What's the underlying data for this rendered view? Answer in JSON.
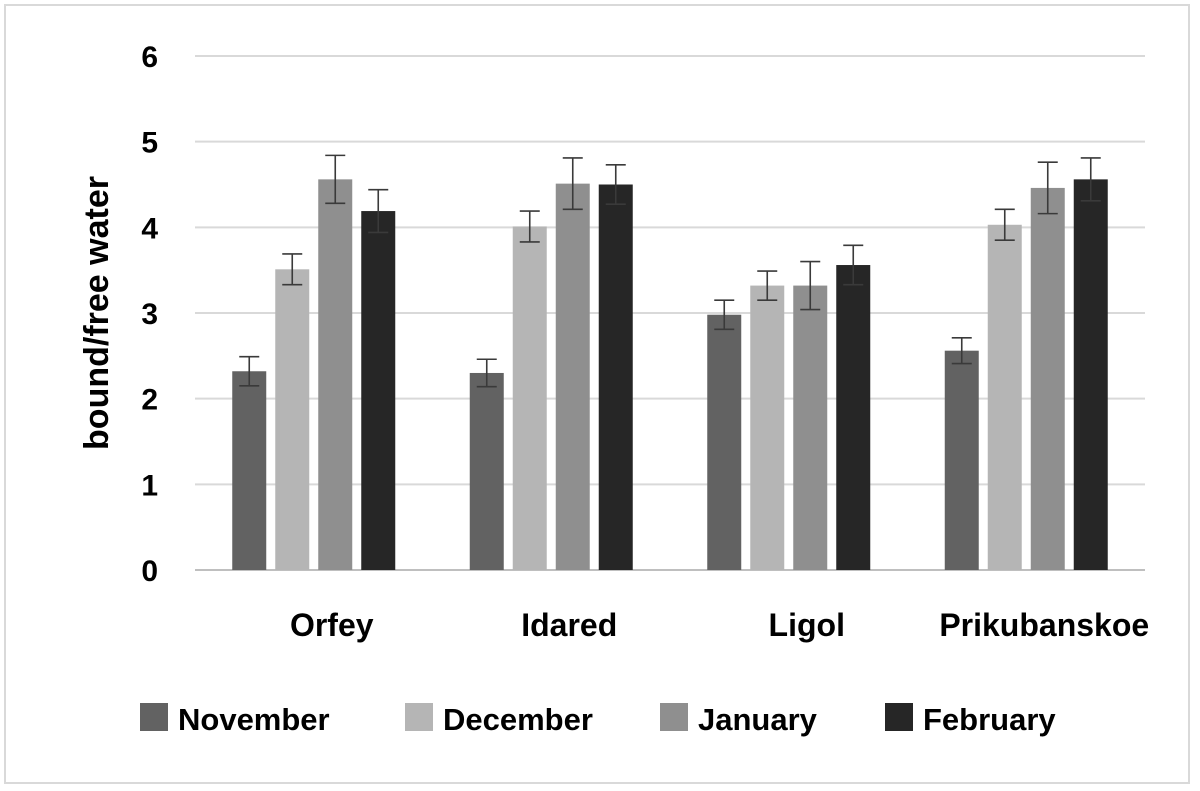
{
  "chart_data": {
    "type": "bar",
    "title": "",
    "xlabel": "",
    "ylabel": "bound/free water",
    "ylim": [
      0,
      6
    ],
    "yticks": [
      0,
      1,
      2,
      3,
      4,
      5,
      6
    ],
    "grid": true,
    "legend_position": "bottom",
    "categories": [
      "Orfey",
      "Idared",
      "Ligol",
      "Prikubanskoe"
    ],
    "series": [
      {
        "name": "November",
        "color": "#626262",
        "values": [
          2.32,
          2.3,
          2.98,
          2.56
        ],
        "errors": [
          0.17,
          0.16,
          0.17,
          0.15
        ]
      },
      {
        "name": "December",
        "color": "#b5b5b5",
        "values": [
          3.51,
          4.01,
          3.32,
          4.03
        ],
        "errors": [
          0.18,
          0.18,
          0.17,
          0.18
        ]
      },
      {
        "name": "January",
        "color": "#8f8f8f",
        "values": [
          4.56,
          4.51,
          3.32,
          4.46
        ],
        "errors": [
          0.28,
          0.3,
          0.28,
          0.3
        ]
      },
      {
        "name": "February",
        "color": "#262626",
        "values": [
          4.19,
          4.5,
          3.56,
          4.56
        ],
        "errors": [
          0.25,
          0.23,
          0.23,
          0.25
        ]
      }
    ]
  }
}
